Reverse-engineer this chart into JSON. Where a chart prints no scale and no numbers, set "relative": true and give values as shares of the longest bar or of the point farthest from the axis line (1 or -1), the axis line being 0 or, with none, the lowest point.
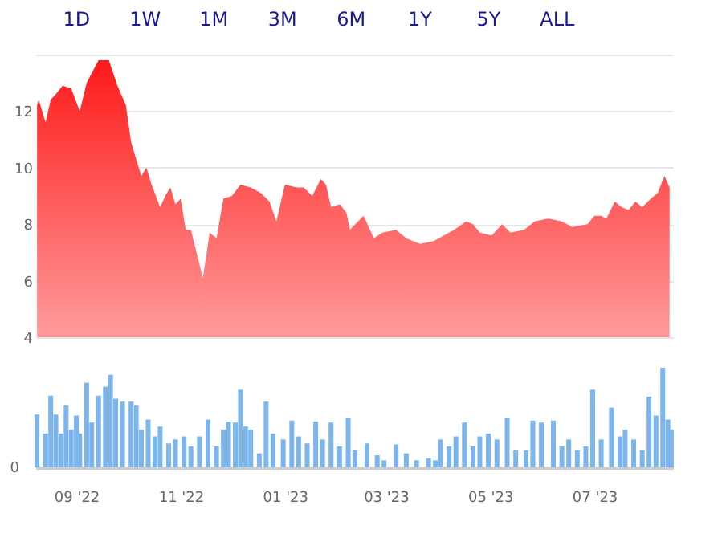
{
  "chart_data": [
    {
      "type": "area",
      "annotations": [
        "1D",
        "1W",
        "1M",
        "3M",
        "6M",
        "1Y",
        "5Y",
        "ALL"
      ],
      "x": [
        "2022-08-09",
        "2022-08-10",
        "2022-08-14",
        "2022-08-17",
        "2022-08-20",
        "2022-08-24",
        "2022-08-29",
        "2022-09-03",
        "2022-09-07",
        "2022-09-14",
        "2022-09-20",
        "2022-09-25",
        "2022-09-30",
        "2022-10-03",
        "2022-10-06",
        "2022-10-09",
        "2022-10-12",
        "2022-10-15",
        "2022-10-20",
        "2022-10-23",
        "2022-10-26",
        "2022-10-29",
        "2022-11-01",
        "2022-11-04",
        "2022-11-07",
        "2022-11-14",
        "2022-11-18",
        "2022-11-22",
        "2022-11-26",
        "2022-12-01",
        "2022-12-06",
        "2022-12-12",
        "2022-12-18",
        "2022-12-23",
        "2022-12-27",
        "2023-01-01",
        "2023-01-08",
        "2023-01-12",
        "2023-01-17",
        "2023-01-22",
        "2023-01-25",
        "2023-01-28",
        "2023-02-02",
        "2023-02-06",
        "2023-02-08",
        "2023-02-16",
        "2023-02-22",
        "2023-02-27",
        "2023-03-07",
        "2023-03-13",
        "2023-03-21",
        "2023-03-29",
        "2023-04-04",
        "2023-04-10",
        "2023-04-17",
        "2023-04-21",
        "2023-04-25",
        "2023-05-02",
        "2023-05-08",
        "2023-05-13",
        "2023-05-21",
        "2023-05-27",
        "2023-06-04",
        "2023-06-12",
        "2023-06-18",
        "2023-06-27",
        "2023-07-01",
        "2023-07-05",
        "2023-07-08",
        "2023-07-13",
        "2023-07-17",
        "2023-07-21",
        "2023-07-25",
        "2023-07-29",
        "2023-08-03",
        "2023-08-07",
        "2023-08-11",
        "2023-08-14"
      ],
      "series": [
        {
          "color": "#ff1a1a",
          "values": [
            12.2,
            12.4,
            11.6,
            12.4,
            12.6,
            12.9,
            12.8,
            12.0,
            13.0,
            13.8,
            13.8,
            12.9,
            12.2,
            10.9,
            10.3,
            9.7,
            10.0,
            9.4,
            8.6,
            9.0,
            9.3,
            8.7,
            8.9,
            7.8,
            7.8,
            6.1,
            7.7,
            7.5,
            8.9,
            9.0,
            9.4,
            9.3,
            9.1,
            8.8,
            8.1,
            9.4,
            9.3,
            9.3,
            9.0,
            9.6,
            9.4,
            8.6,
            8.7,
            8.4,
            7.8,
            8.3,
            7.5,
            7.7,
            7.8,
            7.5,
            7.3,
            7.4,
            7.6,
            7.8,
            8.1,
            8.0,
            7.7,
            7.6,
            8.0,
            7.7,
            7.8,
            8.1,
            8.2,
            8.1,
            7.9,
            8.0,
            8.3,
            8.3,
            8.2,
            8.8,
            8.6,
            8.5,
            8.8,
            8.6,
            8.9,
            9.1,
            9.7,
            9.3
          ]
        }
      ],
      "xlim": [
        "2022-08-08",
        "2023-08-16"
      ],
      "ylim": [
        4,
        14
      ],
      "yticks": [
        4,
        6,
        8,
        10,
        12,
        {
          "value": 14,
          "label": null
        }
      ],
      "grid": "y",
      "tick_labels": "y"
    },
    {
      "type": "bar",
      "relative": true,
      "annotations": [
        "0"
      ],
      "tick_labels": "x",
      "x": [
        "2022-08-09",
        "2022-08-14",
        "2022-08-17",
        "2022-08-20",
        "2022-08-23",
        "2022-08-26",
        "2022-08-29",
        "2022-09-01",
        "2022-09-03",
        "2022-09-07",
        "2022-09-10",
        "2022-09-14",
        "2022-09-18",
        "2022-09-21",
        "2022-09-24",
        "2022-09-28",
        "2022-10-03",
        "2022-10-06",
        "2022-10-09",
        "2022-10-13",
        "2022-10-17",
        "2022-10-20",
        "2022-10-25",
        "2022-10-29",
        "2022-11-03",
        "2022-11-07",
        "2022-11-12",
        "2022-11-17",
        "2022-11-22",
        "2022-11-26",
        "2022-11-29",
        "2022-12-03",
        "2022-12-06",
        "2022-12-09",
        "2022-12-12",
        "2022-12-17",
        "2022-12-21",
        "2022-12-25",
        "2022-12-31",
        "2023-01-05",
        "2023-01-09",
        "2023-01-14",
        "2023-01-19",
        "2023-01-23",
        "2023-01-28",
        "2023-02-02",
        "2023-02-07",
        "2023-02-11",
        "2023-02-18",
        "2023-02-24",
        "2023-02-28",
        "2023-03-07",
        "2023-03-13",
        "2023-03-19",
        "2023-03-26",
        "2023-03-30",
        "2023-04-02",
        "2023-04-07",
        "2023-04-11",
        "2023-04-16",
        "2023-04-21",
        "2023-04-25",
        "2023-04-30",
        "2023-05-05",
        "2023-05-11",
        "2023-05-16",
        "2023-05-22",
        "2023-05-26",
        "2023-05-31",
        "2023-06-07",
        "2023-06-12",
        "2023-06-16",
        "2023-06-21",
        "2023-06-26",
        "2023-06-30",
        "2023-07-05",
        "2023-07-11",
        "2023-07-16",
        "2023-07-19",
        "2023-07-24",
        "2023-07-29",
        "2023-08-02",
        "2023-08-06",
        "2023-08-10",
        "2023-08-13",
        "2023-08-15"
      ],
      "series": [
        {
          "color": "#7cb5ec",
          "values": [
            0.53,
            0.34,
            0.72,
            0.53,
            0.34,
            0.62,
            0.38,
            0.52,
            0.34,
            0.85,
            0.45,
            0.72,
            0.81,
            0.93,
            0.69,
            0.66,
            0.66,
            0.62,
            0.38,
            0.48,
            0.31,
            0.41,
            0.24,
            0.28,
            0.31,
            0.21,
            0.31,
            0.48,
            0.21,
            0.38,
            0.46,
            0.45,
            0.78,
            0.41,
            0.38,
            0.14,
            0.66,
            0.34,
            0.28,
            0.47,
            0.31,
            0.24,
            0.46,
            0.28,
            0.45,
            0.21,
            0.5,
            0.17,
            0.24,
            0.12,
            0.07,
            0.23,
            0.14,
            0.07,
            0.09,
            0.07,
            0.28,
            0.21,
            0.31,
            0.45,
            0.21,
            0.31,
            0.34,
            0.28,
            0.5,
            0.17,
            0.17,
            0.47,
            0.45,
            0.47,
            0.21,
            0.28,
            0.17,
            0.21,
            0.78,
            0.28,
            0.6,
            0.31,
            0.38,
            0.28,
            0.17,
            0.71,
            0.52,
            1,
            0.48,
            0.38
          ]
        }
      ],
      "xlim": [
        "2022-08-08",
        "2023-08-16"
      ],
      "xticks": [
        {
          "value": "2022-09-01",
          "label": "09 '22"
        },
        {
          "value": "2022-11-01",
          "label": "11 '22"
        },
        {
          "value": "2023-01-01",
          "label": "01 '23"
        },
        {
          "value": "2023-03-01",
          "label": "03 '23"
        },
        {
          "value": "2023-05-01",
          "label": "05 '23"
        },
        {
          "value": "2023-07-01",
          "label": "07 '23"
        }
      ]
    }
  ]
}
